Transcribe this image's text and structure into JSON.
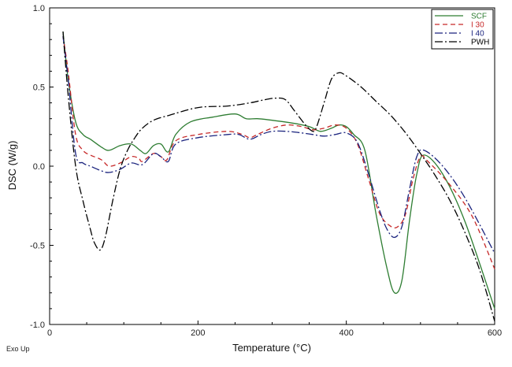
{
  "chart_data": {
    "type": "line",
    "title": "",
    "xlabel": "Temperature (°C)",
    "ylabel": "DSC (W/g)",
    "xlim": [
      0,
      600
    ],
    "ylim": [
      -1.0,
      1.0
    ],
    "x_ticks": [
      0,
      200,
      400,
      600
    ],
    "y_ticks": [
      -1.0,
      -0.5,
      0.0,
      0.5,
      1.0
    ],
    "x_tick_labels": [
      "0",
      "200",
      "400",
      "600"
    ],
    "y_tick_labels": [
      "-1.0",
      "-0.5",
      "0.0",
      "0.5",
      "1.0"
    ],
    "grid": false,
    "legend_position": "top-right",
    "footnote": "Exo Up",
    "series": [
      {
        "name": "SCF",
        "color": "#2e7d32",
        "dash": "solid",
        "x": [
          18,
          25,
          35,
          45,
          55,
          70,
          80,
          95,
          110,
          122,
          130,
          140,
          150,
          160,
          170,
          190,
          220,
          250,
          265,
          280,
          300,
          330,
          350,
          365,
          380,
          390,
          400,
          410,
          425,
          440,
          455,
          465,
          475,
          485,
          495,
          505,
          530,
          560,
          600
        ],
        "y": [
          0.85,
          0.55,
          0.28,
          0.2,
          0.17,
          0.12,
          0.1,
          0.13,
          0.14,
          0.1,
          0.08,
          0.13,
          0.14,
          0.09,
          0.2,
          0.28,
          0.31,
          0.33,
          0.3,
          0.3,
          0.29,
          0.27,
          0.25,
          0.22,
          0.24,
          0.26,
          0.25,
          0.2,
          0.1,
          -0.3,
          -0.65,
          -0.8,
          -0.72,
          -0.35,
          -0.05,
          0.07,
          -0.05,
          -0.35,
          -0.9
        ]
      },
      {
        "name": "I 30",
        "color": "#c62828",
        "dash": "6,4",
        "x": [
          18,
          25,
          35,
          45,
          55,
          70,
          80,
          95,
          110,
          120,
          125,
          140,
          150,
          158,
          170,
          200,
          240,
          260,
          270,
          280,
          300,
          320,
          340,
          355,
          370,
          385,
          400,
          415,
          430,
          445,
          460,
          470,
          480,
          490,
          500,
          510,
          540,
          570,
          600
        ],
        "y": [
          0.82,
          0.6,
          0.2,
          0.1,
          0.07,
          0.04,
          0.0,
          0.02,
          0.06,
          0.05,
          0.03,
          0.08,
          0.06,
          0.04,
          0.16,
          0.2,
          0.22,
          0.2,
          0.18,
          0.2,
          0.24,
          0.26,
          0.25,
          0.23,
          0.24,
          0.26,
          0.24,
          0.14,
          -0.08,
          -0.3,
          -0.38,
          -0.38,
          -0.3,
          -0.08,
          0.06,
          0.03,
          -0.12,
          -0.32,
          -0.65
        ]
      },
      {
        "name": "I 40",
        "color": "#1a237e",
        "dash": "10,3,2,3",
        "x": [
          18,
          25,
          35,
          45,
          55,
          70,
          80,
          95,
          110,
          125,
          140,
          150,
          160,
          170,
          200,
          240,
          255,
          270,
          285,
          300,
          320,
          340,
          355,
          370,
          385,
          400,
          415,
          430,
          445,
          455,
          465,
          475,
          485,
          495,
          505,
          530,
          560,
          600
        ],
        "y": [
          0.82,
          0.55,
          0.08,
          0.02,
          0.0,
          -0.03,
          -0.04,
          -0.02,
          0.02,
          0.01,
          0.08,
          0.06,
          0.03,
          0.14,
          0.18,
          0.2,
          0.2,
          0.17,
          0.2,
          0.22,
          0.22,
          0.21,
          0.2,
          0.19,
          0.2,
          0.21,
          0.15,
          -0.05,
          -0.28,
          -0.4,
          -0.45,
          -0.38,
          -0.15,
          0.06,
          0.1,
          0.0,
          -0.2,
          -0.55
        ]
      },
      {
        "name": "PWH",
        "color": "#000000",
        "dash": "10,3,2,3",
        "x": [
          18,
          25,
          35,
          45,
          55,
          60,
          68,
          75,
          85,
          95,
          105,
          115,
          125,
          140,
          160,
          200,
          240,
          270,
          290,
          305,
          318,
          330,
          345,
          355,
          360,
          370,
          380,
          390,
          400,
          420,
          440,
          460,
          480,
          500,
          520,
          540,
          560,
          580,
          600
        ],
        "y": [
          0.85,
          0.45,
          0.0,
          -0.22,
          -0.4,
          -0.48,
          -0.53,
          -0.45,
          -0.22,
          -0.02,
          0.1,
          0.18,
          0.24,
          0.29,
          0.32,
          0.37,
          0.38,
          0.4,
          0.42,
          0.43,
          0.42,
          0.35,
          0.26,
          0.22,
          0.25,
          0.4,
          0.55,
          0.59,
          0.57,
          0.5,
          0.41,
          0.32,
          0.21,
          0.08,
          -0.06,
          -0.22,
          -0.42,
          -0.66,
          -0.98
        ]
      }
    ]
  }
}
